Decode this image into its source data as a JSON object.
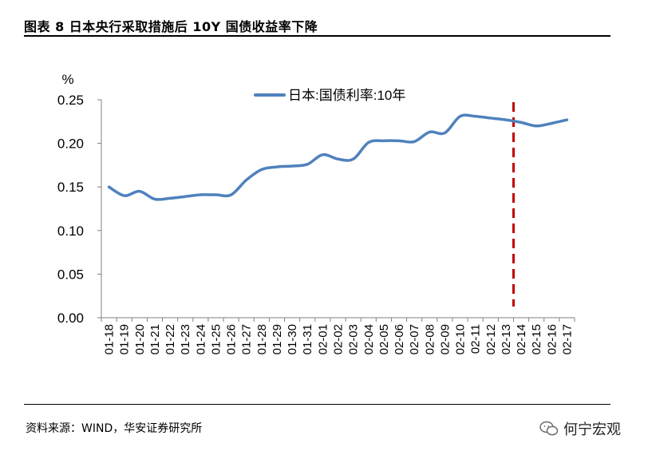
{
  "figure": {
    "title": "图表 8  日本央行采取措施后 10Y 国债收益率下降",
    "source": "资料来源：WIND，华安证券研究所",
    "watermark": "何宁宏观",
    "watermark_icon": "wechat-icon"
  },
  "chart_data": {
    "type": "line",
    "title": "",
    "ylabel": "%",
    "xlabel": "",
    "ylim": [
      0,
      0.25
    ],
    "yticks": [
      "0.00",
      "0.05",
      "0.10",
      "0.15",
      "0.20",
      "0.25"
    ],
    "categories": [
      "01-18",
      "01-19",
      "01-20",
      "01-21",
      "01-22",
      "01-23",
      "01-24",
      "01-25",
      "01-26",
      "01-27",
      "01-28",
      "01-29",
      "01-30",
      "01-31",
      "02-01",
      "02-02",
      "02-03",
      "02-04",
      "02-05",
      "02-06",
      "02-07",
      "02-08",
      "02-09",
      "02-10",
      "02-11",
      "02-12",
      "02-13",
      "02-14",
      "02-15",
      "02-16",
      "02-17"
    ],
    "series": [
      {
        "name": "日本:国债利率:10年",
        "color": "#4f81bd",
        "values": [
          0.15,
          0.14,
          0.145,
          0.136,
          0.137,
          0.139,
          0.141,
          0.141,
          0.141,
          0.158,
          0.17,
          0.173,
          0.174,
          0.176,
          0.187,
          0.182,
          0.182,
          0.201,
          0.203,
          0.203,
          0.202,
          0.213,
          0.212,
          0.231,
          0.231,
          0.229,
          0.227,
          0.224,
          0.22,
          0.223,
          0.227
        ]
      }
    ],
    "marker_line": {
      "at_category": "02-14",
      "color": "#c00000",
      "style": "dashed"
    },
    "legend_position": "top-center",
    "grid": false
  }
}
